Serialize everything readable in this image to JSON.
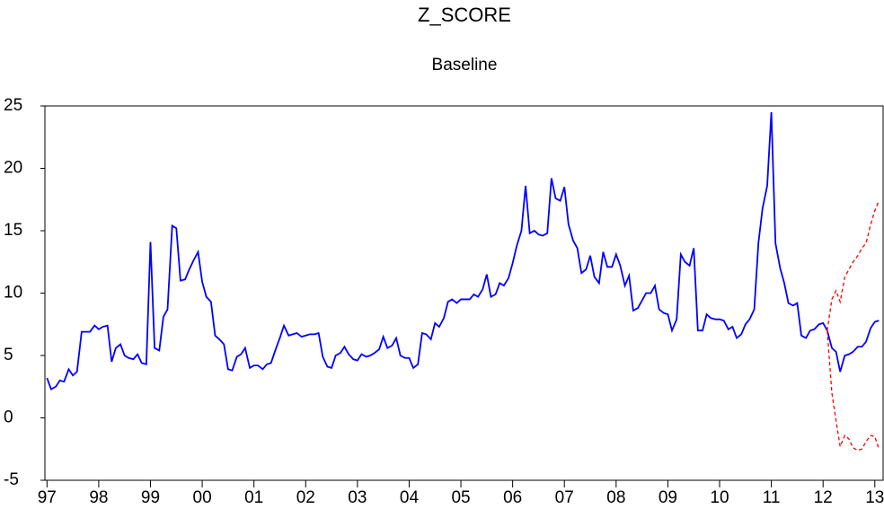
{
  "chart_data": {
    "type": "line",
    "title": "Z_SCORE",
    "subtitle": "Baseline",
    "xlim": [
      1996.96,
      2013.16
    ],
    "ylim": [
      -5,
      25
    ],
    "yticks": [
      -5,
      0,
      5,
      10,
      15,
      20,
      25
    ],
    "xticks": [
      {
        "value": 1997,
        "label": "97"
      },
      {
        "value": 1998,
        "label": "98"
      },
      {
        "value": 1999,
        "label": "99"
      },
      {
        "value": 2000,
        "label": "00"
      },
      {
        "value": 2001,
        "label": "01"
      },
      {
        "value": 2002,
        "label": "02"
      },
      {
        "value": 2003,
        "label": "03"
      },
      {
        "value": 2004,
        "label": "04"
      },
      {
        "value": 2005,
        "label": "05"
      },
      {
        "value": 2006,
        "label": "06"
      },
      {
        "value": 2007,
        "label": "07"
      },
      {
        "value": 2008,
        "label": "08"
      },
      {
        "value": 2009,
        "label": "09"
      },
      {
        "value": 2010,
        "label": "10"
      },
      {
        "value": 2011,
        "label": "11"
      },
      {
        "value": 2012,
        "label": "12"
      },
      {
        "value": 2013,
        "label": "13"
      }
    ],
    "grid": false,
    "series": [
      {
        "color": "#0000ff",
        "style": "solid",
        "x": [
          1997.0,
          1997.08,
          1997.17,
          1997.25,
          1997.33,
          1997.42,
          1997.5,
          1997.58,
          1997.67,
          1997.75,
          1997.83,
          1997.92,
          1998.0,
          1998.08,
          1998.17,
          1998.25,
          1998.33,
          1998.42,
          1998.5,
          1998.58,
          1998.67,
          1998.75,
          1998.83,
          1998.92,
          1999.0,
          1999.08,
          1999.17,
          1999.25,
          1999.33,
          1999.42,
          1999.5,
          1999.58,
          1999.67,
          1999.75,
          1999.83,
          1999.92,
          2000.0,
          2000.08,
          2000.17,
          2000.25,
          2000.33,
          2000.42,
          2000.5,
          2000.58,
          2000.67,
          2000.75,
          2000.83,
          2000.92,
          2001.0,
          2001.08,
          2001.17,
          2001.25,
          2001.33,
          2001.42,
          2001.5,
          2001.58,
          2001.67,
          2001.75,
          2001.83,
          2001.92,
          2002.0,
          2002.08,
          2002.17,
          2002.25,
          2002.33,
          2002.42,
          2002.5,
          2002.58,
          2002.67,
          2002.75,
          2002.83,
          2002.92,
          2003.0,
          2003.08,
          2003.17,
          2003.25,
          2003.33,
          2003.42,
          2003.5,
          2003.58,
          2003.67,
          2003.75,
          2003.83,
          2003.92,
          2004.0,
          2004.08,
          2004.17,
          2004.25,
          2004.33,
          2004.42,
          2004.5,
          2004.58,
          2004.67,
          2004.75,
          2004.83,
          2004.92,
          2005.0,
          2005.08,
          2005.17,
          2005.25,
          2005.33,
          2005.42,
          2005.5,
          2005.58,
          2005.67,
          2005.75,
          2005.83,
          2005.92,
          2006.0,
          2006.08,
          2006.17,
          2006.25,
          2006.33,
          2006.42,
          2006.5,
          2006.58,
          2006.67,
          2006.75,
          2006.83,
          2006.92,
          2007.0,
          2007.08,
          2007.17,
          2007.25,
          2007.33,
          2007.42,
          2007.5,
          2007.58,
          2007.67,
          2007.75,
          2007.83,
          2007.92,
          2008.0,
          2008.08,
          2008.17,
          2008.25,
          2008.33,
          2008.42,
          2008.5,
          2008.58,
          2008.67,
          2008.75,
          2008.83,
          2008.92,
          2009.0,
          2009.08,
          2009.17,
          2009.25,
          2009.33,
          2009.42,
          2009.5,
          2009.58,
          2009.67,
          2009.75,
          2009.83,
          2009.92,
          2010.0,
          2010.08,
          2010.17,
          2010.25,
          2010.33,
          2010.42,
          2010.5,
          2010.58,
          2010.67,
          2010.75,
          2010.83,
          2010.92,
          2011.0,
          2011.08,
          2011.17,
          2011.25,
          2011.33,
          2011.42,
          2011.5,
          2011.58,
          2011.67,
          2011.75,
          2011.83,
          2011.92,
          2012.0,
          2012.08,
          2012.17,
          2012.25,
          2012.33,
          2012.42,
          2012.5,
          2012.58,
          2012.67,
          2012.75,
          2012.83,
          2012.92,
          2013.0,
          2013.08
        ],
        "values": [
          3.2,
          2.3,
          2.5,
          3.0,
          2.9,
          3.9,
          3.4,
          3.7,
          6.9,
          6.9,
          6.9,
          7.4,
          7.1,
          7.3,
          7.4,
          4.5,
          5.6,
          5.9,
          5.0,
          4.8,
          4.7,
          5.1,
          4.4,
          4.3,
          14.1,
          5.6,
          5.4,
          8.1,
          8.7,
          15.4,
          15.2,
          11.0,
          11.1,
          11.9,
          12.6,
          13.3,
          10.9,
          9.7,
          9.3,
          6.6,
          6.3,
          5.9,
          3.9,
          3.8,
          4.9,
          5.1,
          5.6,
          4.0,
          4.2,
          4.2,
          3.9,
          4.3,
          4.4,
          5.5,
          6.4,
          7.4,
          6.6,
          6.7,
          6.8,
          6.5,
          6.6,
          6.7,
          6.7,
          6.8,
          4.9,
          4.1,
          4.0,
          5.0,
          5.2,
          5.7,
          5.1,
          4.7,
          4.6,
          5.1,
          4.9,
          5.0,
          5.2,
          5.5,
          6.5,
          5.6,
          5.8,
          6.4,
          5.0,
          4.8,
          4.8,
          4.0,
          4.3,
          6.8,
          6.7,
          6.3,
          7.6,
          7.3,
          8.0,
          9.3,
          9.5,
          9.2,
          9.5,
          9.5,
          9.5,
          9.9,
          9.7,
          10.3,
          11.5,
          9.7,
          9.9,
          10.8,
          10.6,
          11.2,
          12.4,
          13.8,
          15.0,
          18.6,
          14.8,
          15.0,
          14.7,
          14.6,
          14.8,
          19.2,
          17.6,
          17.4,
          18.5,
          15.5,
          14.2,
          13.6,
          11.6,
          11.9,
          13.0,
          11.3,
          10.8,
          13.3,
          12.1,
          12.1,
          13.1,
          12.2,
          10.6,
          11.4,
          8.6,
          8.8,
          9.4,
          10.0,
          10.0,
          10.6,
          8.7,
          8.4,
          8.3,
          7.0,
          7.9,
          13.1,
          12.5,
          12.2,
          13.6,
          7.0,
          7.0,
          8.3,
          8.0,
          7.9,
          7.9,
          7.8,
          7.1,
          7.3,
          6.4,
          6.7,
          7.5,
          7.9,
          8.7,
          14.0,
          16.8,
          18.6,
          24.5,
          14.0,
          12.0,
          10.8,
          9.2,
          9.0,
          9.2,
          6.6,
          6.4,
          7.0,
          7.1,
          7.5,
          7.6,
          7.0,
          5.6,
          5.3,
          3.7,
          5.0,
          5.1,
          5.3,
          5.7,
          5.7,
          6.1,
          7.2,
          7.7,
          7.8
        ]
      },
      {
        "color": "#ff0000",
        "style": "dashed",
        "x": [
          2012.08,
          2012.17,
          2012.25,
          2012.33,
          2012.42,
          2012.5,
          2012.58,
          2012.67,
          2012.75,
          2012.83,
          2012.92,
          2013.0,
          2013.08
        ],
        "values": [
          7.0,
          9.5,
          10.2,
          9.3,
          11.3,
          11.9,
          12.5,
          13.0,
          13.6,
          14.0,
          15.5,
          16.6,
          17.4
        ]
      },
      {
        "color": "#ff0000",
        "style": "dashed",
        "x": [
          2012.08,
          2012.17,
          2012.25,
          2012.33,
          2012.42,
          2012.5,
          2012.58,
          2012.67,
          2012.75,
          2012.83,
          2012.92,
          2013.0,
          2013.08
        ],
        "values": [
          7.0,
          2.0,
          -0.2,
          -2.3,
          -1.4,
          -1.7,
          -2.4,
          -2.6,
          -2.5,
          -1.9,
          -1.4,
          -1.5,
          -2.5
        ]
      }
    ]
  }
}
